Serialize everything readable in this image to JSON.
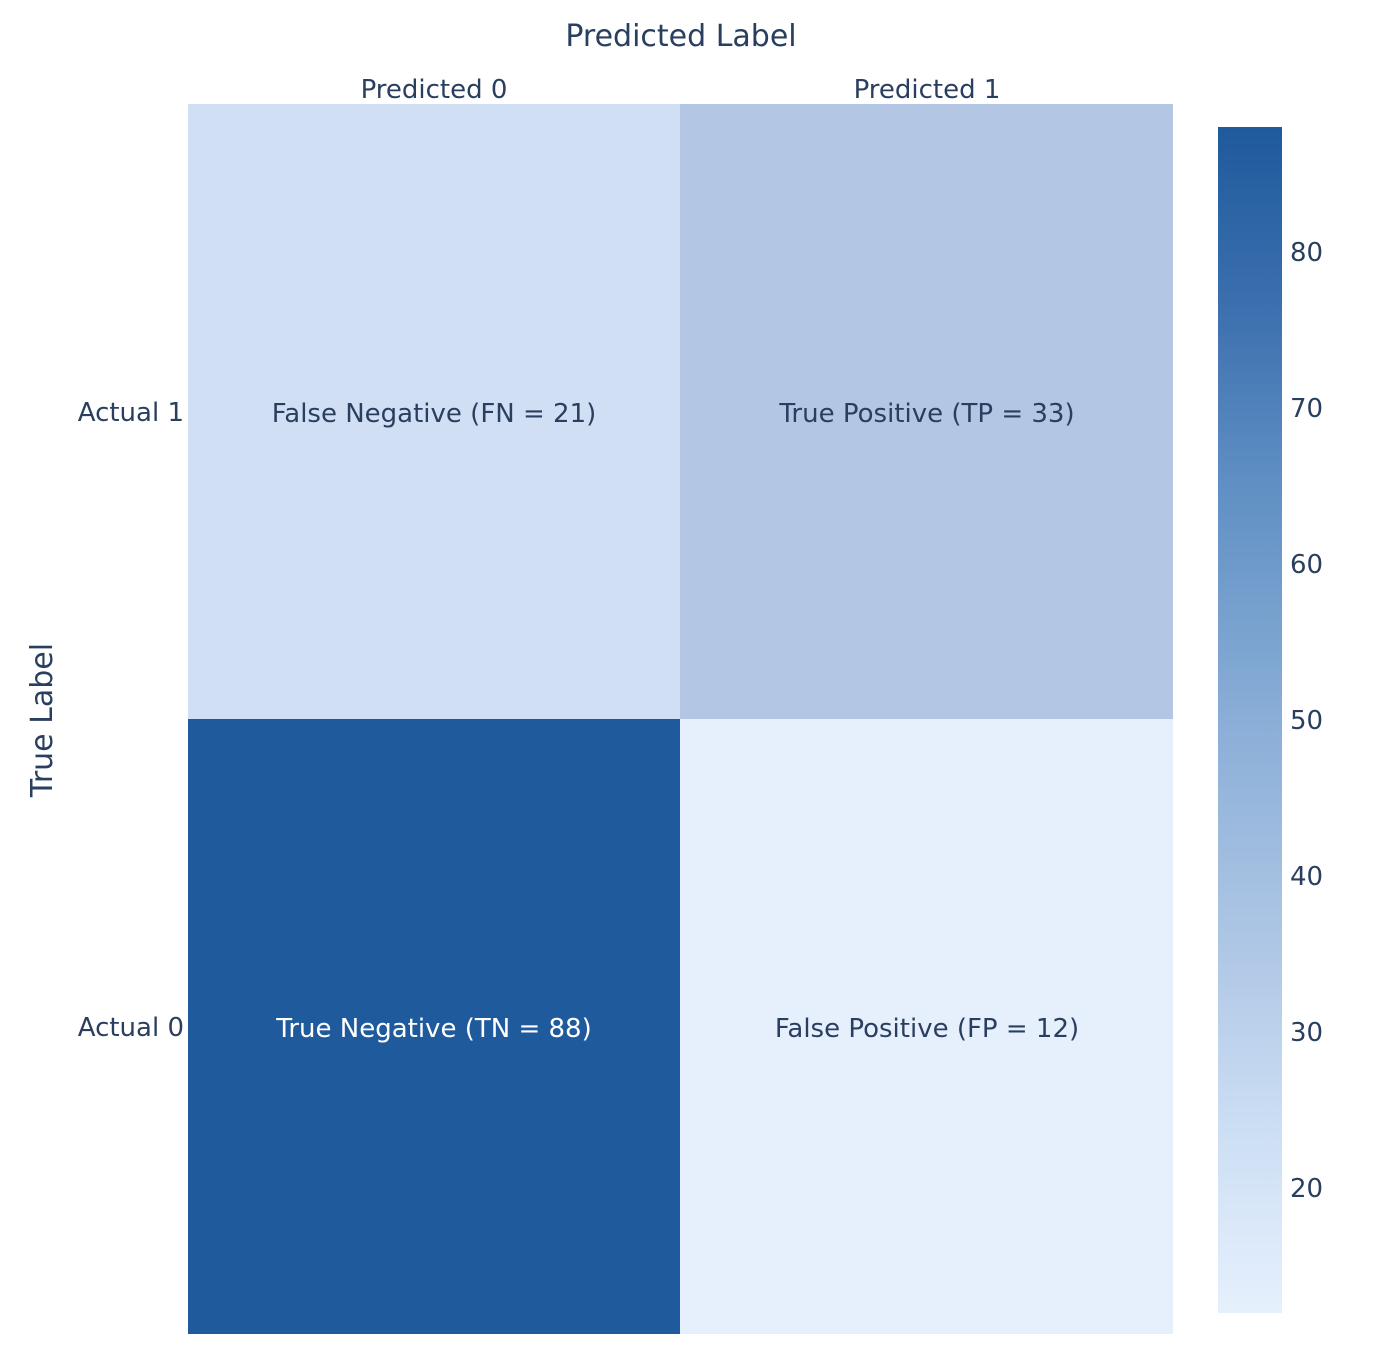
{
  "chart_data": {
    "type": "heatmap",
    "xlabel": "Predicted Label",
    "ylabel": "True Label",
    "x_categories": [
      "Predicted 0",
      "Predicted 1"
    ],
    "y_categories_top_to_bottom": [
      "Actual 1",
      "Actual 0"
    ],
    "cells": [
      {
        "row": "Actual 1",
        "col": "Predicted 0",
        "value": 21,
        "label": "False Negative (FN = 21)"
      },
      {
        "row": "Actual 1",
        "col": "Predicted 1",
        "value": 33,
        "label": "True Positive (TP = 33)"
      },
      {
        "row": "Actual 0",
        "col": "Predicted 0",
        "value": 88,
        "label": "True Negative (TN = 88)"
      },
      {
        "row": "Actual 0",
        "col": "Predicted 1",
        "value": 12,
        "label": "False Positive (FP = 12)"
      }
    ],
    "colorscale": {
      "name": "Blues",
      "min": 12,
      "max": 88,
      "low_color": "#e6f0fd",
      "high_color": "#1f5a9c",
      "ticks": [
        20,
        30,
        40,
        50,
        60,
        70,
        80
      ]
    },
    "grid": false,
    "legend": "colorbar-right"
  }
}
